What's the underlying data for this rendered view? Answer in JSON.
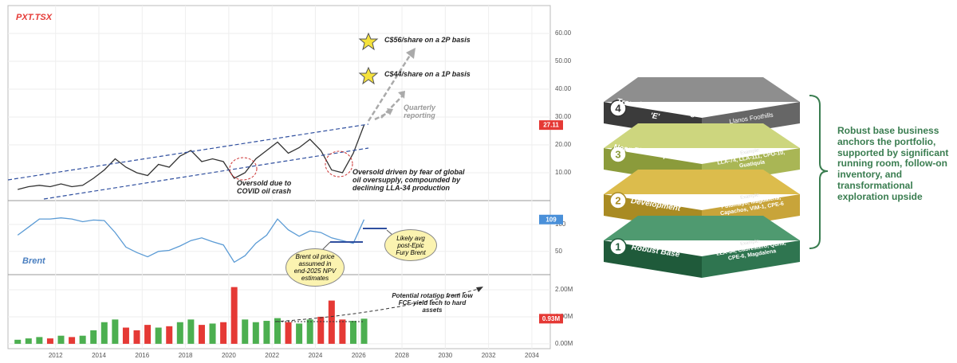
{
  "chart_data": [
    {
      "type": "line",
      "title": "PXT.TSX",
      "color": "#333333",
      "badge_color": "#e53935",
      "x": [
        2010.25,
        2010.75,
        2011.25,
        2011.75,
        2012.25,
        2012.75,
        2013.25,
        2013.75,
        2014.25,
        2014.75,
        2015.25,
        2015.75,
        2016.25,
        2016.75,
        2017.25,
        2017.75,
        2018.25,
        2018.75,
        2019.25,
        2019.75,
        2020.25,
        2020.75,
        2021.25,
        2021.75,
        2022.25,
        2022.75,
        2023.25,
        2023.75,
        2024.25,
        2024.75,
        2025.25,
        2025.75,
        2026.25
      ],
      "values": [
        4,
        5,
        5.5,
        5,
        6,
        5,
        5.5,
        8,
        11,
        15,
        12,
        10,
        9,
        13,
        12,
        16,
        18,
        14,
        15,
        14,
        8,
        10,
        15,
        18,
        21,
        17,
        19,
        22,
        18,
        11,
        10,
        17,
        27.11
      ],
      "xlim": [
        2009.8,
        2034.85
      ],
      "ylim": [
        0,
        70
      ],
      "yticks": [
        {
          "value": 10,
          "label": "10.00"
        },
        {
          "value": 20,
          "label": "20.00"
        },
        {
          "value": 30,
          "label": "30.00"
        },
        {
          "value": 40,
          "label": "40.00"
        },
        {
          "value": 50,
          "label": "50.00"
        },
        {
          "value": 60,
          "label": "60.00"
        }
      ],
      "grid": true,
      "annotations": [
        "C$56/share on a 2P basis",
        "C$44/share on a 1P basis",
        "Quarterly reporting",
        "Oversold due to COVID oil crash",
        "Oversold driven by fear of global oil oversupply, compounded by declining LLA-34 production"
      ]
    },
    {
      "type": "line",
      "title": "Brent",
      "color": "#5b9bd5",
      "badge_color": "#4a90d9",
      "x": [
        2010.25,
        2010.75,
        2011.25,
        2011.75,
        2012.25,
        2012.75,
        2013.25,
        2013.75,
        2014.25,
        2014.75,
        2015.25,
        2015.75,
        2016.25,
        2016.75,
        2017.25,
        2017.75,
        2018.25,
        2018.75,
        2019.25,
        2019.75,
        2020.25,
        2020.75,
        2021.25,
        2021.75,
        2022.25,
        2022.75,
        2023.25,
        2023.75,
        2024.25,
        2024.75,
        2025.25,
        2025.75,
        2026.25
      ],
      "values": [
        80,
        95,
        110,
        110,
        112,
        110,
        105,
        108,
        107,
        85,
        58,
        48,
        40,
        50,
        52,
        60,
        70,
        75,
        68,
        62,
        30,
        42,
        65,
        80,
        110,
        90,
        78,
        88,
        85,
        75,
        70,
        65,
        109
      ],
      "xlim": [
        2009.8,
        2034.85
      ],
      "ylim": [
        7,
        144
      ],
      "yticks": [
        50,
        100
      ],
      "grid": true,
      "annotations": [
        "Brent oil price assumed in end-2025 NPV estimates",
        "Likely avg post-Epic Fury Brent"
      ]
    },
    {
      "type": "bar",
      "badge_color": "#e53935",
      "colors": {
        "up": "#4caf50",
        "down": "#e53935"
      },
      "x": [
        2010.25,
        2010.75,
        2011.25,
        2011.75,
        2012.25,
        2012.75,
        2013.25,
        2013.75,
        2014.25,
        2014.75,
        2015.25,
        2015.75,
        2016.25,
        2016.75,
        2017.25,
        2017.75,
        2018.25,
        2018.75,
        2019.25,
        2019.75,
        2020.25,
        2020.75,
        2021.25,
        2021.75,
        2022.25,
        2022.75,
        2023.25,
        2023.75,
        2024.25,
        2024.75,
        2025.25,
        2025.75,
        2026.25
      ],
      "values": [
        0.15,
        0.2,
        0.25,
        0.2,
        0.3,
        0.25,
        0.3,
        0.5,
        0.8,
        0.9,
        0.6,
        0.5,
        0.7,
        0.6,
        0.65,
        0.8,
        0.9,
        0.7,
        0.75,
        0.8,
        2.1,
        0.9,
        0.8,
        0.85,
        0.95,
        0.8,
        0.75,
        0.9,
        1.0,
        1.6,
        0.9,
        0.85,
        0.93
      ],
      "last_value_label": "0.93M",
      "xlim": [
        2009.8,
        2034.85
      ],
      "ylim": [
        -0.18,
        2.56
      ],
      "yticks": [
        {
          "value": 0,
          "label": "0.00M"
        },
        {
          "value": 1,
          "label": "1.00M"
        },
        {
          "value": 2,
          "label": "2.00M"
        }
      ],
      "xticks": [
        2012,
        2014,
        2016,
        2018,
        2020,
        2022,
        2024,
        2026,
        2028,
        2030,
        2032,
        2034
      ],
      "grid": true,
      "annotations": [
        "Potential rotation from low FCF-yield tech to hard assets"
      ]
    }
  ],
  "diagram": {
    "layers": [
      {
        "number": "4",
        "title": "Transformational Big 'E'",
        "examples": "Llanos Foothills"
      },
      {
        "number": "3",
        "title": "Near-Field Exploration",
        "example_label": "Example:",
        "examples": "LLA-74, LLA-111, CPO-10, Guatiquía"
      },
      {
        "number": "2",
        "title": "Development",
        "example_label": "Example:",
        "examples": "Putumayo, Magdalena, Capachos, VIM-1, CPE-6"
      },
      {
        "number": "1",
        "title": "Robust Base",
        "example_label": "Example:",
        "examples": "LLA-34, Cabrestero, Quifa, CPE-6, Magdalena"
      }
    ],
    "bracket_text": "Robust base business anchors the portfolio, supported by significant running room, follow-on inventory, and transformational exploration upside"
  }
}
